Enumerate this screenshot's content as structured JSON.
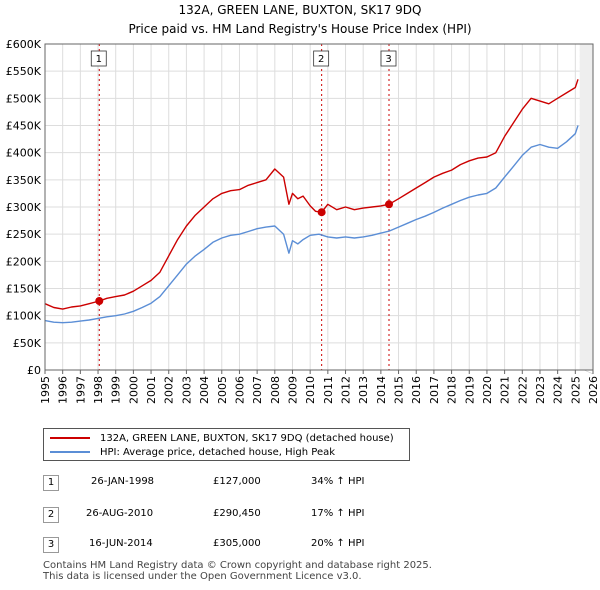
{
  "title": {
    "line1": "132A, GREEN LANE, BUXTON, SK17 9DQ",
    "line2": "Price paid vs. HM Land Registry's House Price Index (HPI)"
  },
  "colors": {
    "property": "#cc0000",
    "hpi": "#5b8ed6",
    "shade": "#dce6f5",
    "grid": "#dddddd"
  },
  "chart_data": {
    "type": "line",
    "xlim": [
      1995,
      2026
    ],
    "ylim": [
      0,
      600000
    ],
    "y_ticks": [
      {
        "value": 0,
        "label": "£0"
      },
      {
        "value": 50000,
        "label": "£50K"
      },
      {
        "value": 100000,
        "label": "£100K"
      },
      {
        "value": 150000,
        "label": "£150K"
      },
      {
        "value": 200000,
        "label": "£200K"
      },
      {
        "value": 250000,
        "label": "£250K"
      },
      {
        "value": 300000,
        "label": "£300K"
      },
      {
        "value": 350000,
        "label": "£350K"
      },
      {
        "value": 400000,
        "label": "£400K"
      },
      {
        "value": 450000,
        "label": "£450K"
      },
      {
        "value": 500000,
        "label": "£500K"
      },
      {
        "value": 550000,
        "label": "£550K"
      },
      {
        "value": 600000,
        "label": "£600K"
      }
    ],
    "x_ticks": [
      1995,
      1996,
      1997,
      1998,
      1999,
      2000,
      2001,
      2002,
      2003,
      2004,
      2005,
      2006,
      2007,
      2008,
      2009,
      2010,
      2011,
      2012,
      2013,
      2014,
      2015,
      2016,
      2017,
      2018,
      2019,
      2020,
      2021,
      2022,
      2023,
      2024,
      2025,
      2026
    ],
    "series": [
      {
        "name": "132A, GREEN LANE, BUXTON, SK17 9DQ (detached house)",
        "color": "#cc0000",
        "x": [
          1995.0,
          1995.5,
          1996.0,
          1996.5,
          1997.0,
          1997.5,
          1998.07,
          1998.5,
          1999.0,
          1999.5,
          2000.0,
          2000.5,
          2001.0,
          2001.5,
          2002.0,
          2002.5,
          2003.0,
          2003.5,
          2004.0,
          2004.5,
          2005.0,
          2005.5,
          2006.0,
          2006.5,
          2007.0,
          2007.5,
          2008.0,
          2008.5,
          2008.8,
          2009.0,
          2009.3,
          2009.6,
          2010.0,
          2010.3,
          2010.65,
          2011.0,
          2011.5,
          2012.0,
          2012.5,
          2013.0,
          2013.5,
          2014.0,
          2014.46,
          2015.0,
          2015.5,
          2016.0,
          2016.5,
          2017.0,
          2017.5,
          2018.0,
          2018.5,
          2019.0,
          2019.5,
          2020.0,
          2020.5,
          2021.0,
          2021.5,
          2022.0,
          2022.5,
          2023.0,
          2023.5,
          2024.0,
          2024.5,
          2025.0,
          2025.15
        ],
        "values": [
          122000,
          115000,
          112000,
          116000,
          118000,
          122000,
          127000,
          132000,
          135000,
          138000,
          145000,
          155000,
          165000,
          180000,
          210000,
          240000,
          265000,
          285000,
          300000,
          315000,
          325000,
          330000,
          332000,
          340000,
          345000,
          350000,
          370000,
          355000,
          305000,
          325000,
          315000,
          320000,
          302000,
          292000,
          290450,
          305000,
          295000,
          300000,
          295000,
          298000,
          300000,
          302000,
          305000,
          315000,
          325000,
          335000,
          345000,
          355000,
          362000,
          368000,
          378000,
          385000,
          390000,
          392000,
          400000,
          430000,
          455000,
          480000,
          500000,
          495000,
          490000,
          500000,
          510000,
          520000,
          535000
        ]
      },
      {
        "name": "HPI: Average price, detached house, High Peak",
        "color": "#5b8ed6",
        "x": [
          1995.0,
          1995.5,
          1996.0,
          1996.5,
          1997.0,
          1997.5,
          1998.0,
          1998.5,
          1999.0,
          1999.5,
          2000.0,
          2000.5,
          2001.0,
          2001.5,
          2002.0,
          2002.5,
          2003.0,
          2003.5,
          2004.0,
          2004.5,
          2005.0,
          2005.5,
          2006.0,
          2006.5,
          2007.0,
          2007.5,
          2008.0,
          2008.5,
          2008.8,
          2009.0,
          2009.3,
          2009.6,
          2010.0,
          2010.5,
          2011.0,
          2011.5,
          2012.0,
          2012.5,
          2013.0,
          2013.5,
          2014.0,
          2014.5,
          2015.0,
          2015.5,
          2016.0,
          2016.5,
          2017.0,
          2017.5,
          2018.0,
          2018.5,
          2019.0,
          2019.5,
          2020.0,
          2020.5,
          2021.0,
          2021.5,
          2022.0,
          2022.5,
          2023.0,
          2023.5,
          2024.0,
          2024.5,
          2025.0,
          2025.15
        ],
        "values": [
          91000,
          88000,
          87000,
          88000,
          90000,
          92000,
          95000,
          98000,
          100000,
          103000,
          108000,
          115000,
          123000,
          135000,
          155000,
          175000,
          195000,
          210000,
          222000,
          235000,
          243000,
          248000,
          250000,
          255000,
          260000,
          263000,
          265000,
          250000,
          215000,
          238000,
          232000,
          240000,
          248000,
          250000,
          245000,
          243000,
          245000,
          243000,
          245000,
          248000,
          252000,
          256000,
          263000,
          270000,
          277000,
          283000,
          290000,
          298000,
          305000,
          312000,
          318000,
          322000,
          325000,
          335000,
          355000,
          375000,
          395000,
          410000,
          415000,
          410000,
          408000,
          420000,
          435000,
          450000
        ]
      }
    ],
    "sales": [
      {
        "marker": "1",
        "date": "26-JAN-1998",
        "x": 1998.07,
        "price": 127000,
        "price_label": "£127,000",
        "hpi_change": "34% ↑ HPI"
      },
      {
        "marker": "2",
        "date": "26-AUG-2010",
        "x": 2010.65,
        "price": 290450,
        "price_label": "£290,450",
        "hpi_change": "17% ↑ HPI"
      },
      {
        "marker": "3",
        "date": "16-JUN-2014",
        "x": 2014.46,
        "price": 305000,
        "price_label": "£305,000",
        "hpi_change": "20% ↑ HPI"
      }
    ],
    "future_shade_from": 2025.25
  },
  "legend": {
    "property_label": "132A, GREEN LANE, BUXTON, SK17 9DQ (detached house)",
    "hpi_label": "HPI: Average price, detached house, High Peak"
  },
  "footer": {
    "line1": "Contains HM Land Registry data © Crown copyright and database right 2025.",
    "line2": "This data is licensed under the Open Government Licence v3.0."
  }
}
